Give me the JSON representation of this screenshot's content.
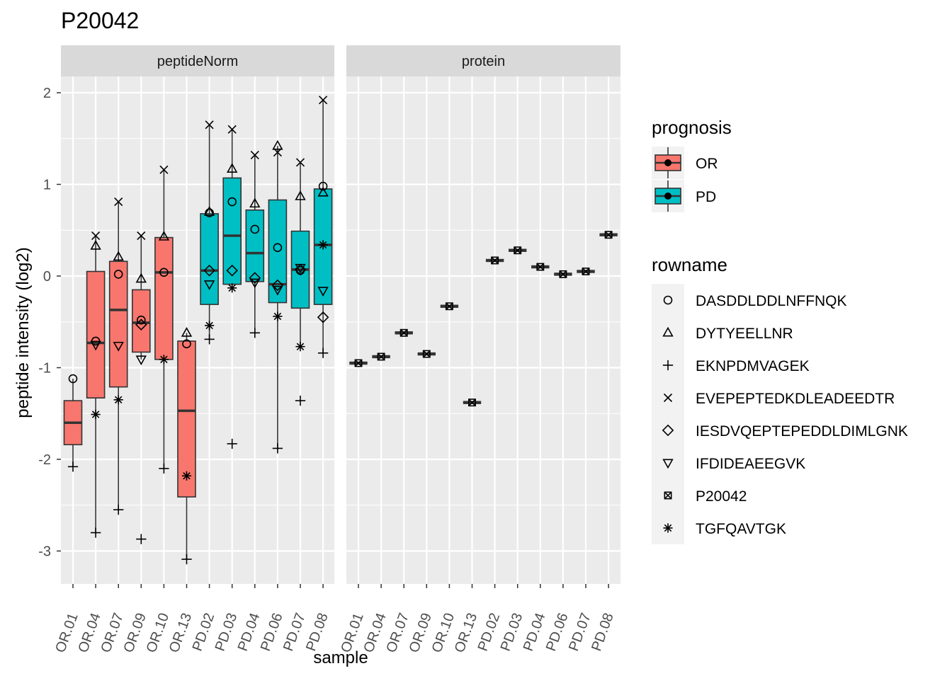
{
  "chart_data": {
    "type": "box",
    "title": "P20042",
    "xlabel": "sample",
    "ylabel": "peptide intensity (log2)",
    "ylim": [
      -3.35,
      2.2
    ],
    "yticks": [
      -3,
      -2,
      -1,
      0,
      1,
      2
    ],
    "ytick_labels": [
      "-3",
      "-2",
      "-1",
      "0",
      "1",
      "2"
    ],
    "categories": [
      "OR.01",
      "OR.04",
      "OR.07",
      "OR.09",
      "OR.10",
      "OR.13",
      "PD.02",
      "PD.03",
      "PD.04",
      "PD.06",
      "PD.07",
      "PD.08"
    ],
    "grid": true,
    "facets": [
      {
        "label": "peptideNorm",
        "boxes": [
          {
            "sample": "OR.01",
            "group": "OR",
            "q1": -1.84,
            "median": -1.6,
            "q3": -1.36,
            "lower": -2.08,
            "upper": -1.12
          },
          {
            "sample": "OR.04",
            "group": "OR",
            "q1": -1.33,
            "median": -0.73,
            "q3": 0.05,
            "lower": -2.8,
            "upper": 0.44
          },
          {
            "sample": "OR.07",
            "group": "OR",
            "q1": -1.21,
            "median": -0.37,
            "q3": 0.16,
            "lower": -2.55,
            "upper": 0.81
          },
          {
            "sample": "OR.09",
            "group": "OR",
            "q1": -0.83,
            "median": -0.51,
            "q3": -0.15,
            "lower": -0.91,
            "upper": 0.44
          },
          {
            "sample": "OR.10",
            "group": "OR",
            "q1": -0.91,
            "median": 0.04,
            "q3": 0.42,
            "lower": -2.1,
            "upper": 1.16
          },
          {
            "sample": "OR.13",
            "group": "OR",
            "q1": -2.41,
            "median": -1.47,
            "q3": -0.71,
            "lower": -3.09,
            "upper": -0.62
          },
          {
            "sample": "PD.02",
            "group": "PD",
            "q1": -0.31,
            "median": 0.06,
            "q3": 0.68,
            "lower": -0.69,
            "upper": 1.65
          },
          {
            "sample": "PD.03",
            "group": "PD",
            "q1": -0.09,
            "median": 0.44,
            "q3": 1.07,
            "lower": -0.13,
            "upper": 1.6
          },
          {
            "sample": "PD.04",
            "group": "PD",
            "q1": -0.06,
            "median": 0.25,
            "q3": 0.72,
            "lower": -0.62,
            "upper": 1.32
          },
          {
            "sample": "PD.06",
            "group": "PD",
            "q1": -0.29,
            "median": -0.09,
            "q3": 0.83,
            "lower": -1.88,
            "upper": 1.42
          },
          {
            "sample": "PD.07",
            "group": "PD",
            "q1": -0.35,
            "median": 0.07,
            "q3": 0.49,
            "lower": -0.77,
            "upper": 1.24
          },
          {
            "sample": "PD.08",
            "group": "PD",
            "q1": -0.31,
            "median": 0.34,
            "q3": 0.95,
            "lower": -0.84,
            "upper": 1.92
          }
        ],
        "points": [
          {
            "sample": "OR.01",
            "peptide": "DASDDLDDLNFFNQK",
            "y": -1.12
          },
          {
            "sample": "OR.01",
            "peptide": "EKNPDMVAGEK",
            "y": -2.08
          },
          {
            "sample": "OR.04",
            "peptide": "DASDDLDDLNFFNQK",
            "y": -0.71
          },
          {
            "sample": "OR.04",
            "peptide": "DYTYEELLNR",
            "y": 0.33
          },
          {
            "sample": "OR.04",
            "peptide": "EKNPDMVAGEK",
            "y": -2.8
          },
          {
            "sample": "OR.04",
            "peptide": "EVEPEPTEDKDLEADEEDTR",
            "y": 0.44
          },
          {
            "sample": "OR.04",
            "peptide": "IFDIDEAEEGVK",
            "y": -0.75
          },
          {
            "sample": "OR.04",
            "peptide": "TGFQAVTGK",
            "y": -1.51
          },
          {
            "sample": "OR.07",
            "peptide": "DASDDLDDLNFFNQK",
            "y": 0.02
          },
          {
            "sample": "OR.07",
            "peptide": "DYTYEELLNR",
            "y": 0.21
          },
          {
            "sample": "OR.07",
            "peptide": "EKNPDMVAGEK",
            "y": -2.55
          },
          {
            "sample": "OR.07",
            "peptide": "EVEPEPTEDKDLEADEEDTR",
            "y": 0.81
          },
          {
            "sample": "OR.07",
            "peptide": "IFDIDEAEEGVK",
            "y": -0.76
          },
          {
            "sample": "OR.07",
            "peptide": "TGFQAVTGK",
            "y": -1.35
          },
          {
            "sample": "OR.09",
            "peptide": "DASDDLDDLNFFNQK",
            "y": -0.48
          },
          {
            "sample": "OR.09",
            "peptide": "DYTYEELLNR",
            "y": -0.03
          },
          {
            "sample": "OR.09",
            "peptide": "EKNPDMVAGEK",
            "y": -2.87
          },
          {
            "sample": "OR.09",
            "peptide": "EVEPEPTEDKDLEADEEDTR",
            "y": 0.44
          },
          {
            "sample": "OR.09",
            "peptide": "IESDVQEPTEPEDDLDIMLGNK",
            "y": -0.53
          },
          {
            "sample": "OR.09",
            "peptide": "IFDIDEAEEGVK",
            "y": -0.91
          },
          {
            "sample": "OR.10",
            "peptide": "DASDDLDDLNFFNQK",
            "y": 0.04
          },
          {
            "sample": "OR.10",
            "peptide": "DYTYEELLNR",
            "y": 0.43
          },
          {
            "sample": "OR.10",
            "peptide": "EKNPDMVAGEK",
            "y": -2.1
          },
          {
            "sample": "OR.10",
            "peptide": "EVEPEPTEDKDLEADEEDTR",
            "y": 1.16
          },
          {
            "sample": "OR.10",
            "peptide": "TGFQAVTGK",
            "y": -0.91
          },
          {
            "sample": "OR.13",
            "peptide": "DASDDLDDLNFFNQK",
            "y": -0.74
          },
          {
            "sample": "OR.13",
            "peptide": "DYTYEELLNR",
            "y": -0.62
          },
          {
            "sample": "OR.13",
            "peptide": "EKNPDMVAGEK",
            "y": -3.09
          },
          {
            "sample": "OR.13",
            "peptide": "TGFQAVTGK",
            "y": -2.18
          },
          {
            "sample": "PD.02",
            "peptide": "DASDDLDDLNFFNQK",
            "y": 0.69
          },
          {
            "sample": "PD.02",
            "peptide": "DYTYEELLNR",
            "y": 0.7
          },
          {
            "sample": "PD.02",
            "peptide": "EKNPDMVAGEK",
            "y": -0.69
          },
          {
            "sample": "PD.02",
            "peptide": "EVEPEPTEDKDLEADEEDTR",
            "y": 1.65
          },
          {
            "sample": "PD.02",
            "peptide": "IESDVQEPTEPEDDLDIMLGNK",
            "y": 0.06
          },
          {
            "sample": "PD.02",
            "peptide": "IFDIDEAEEGVK",
            "y": -0.09
          },
          {
            "sample": "PD.02",
            "peptide": "TGFQAVTGK",
            "y": -0.54
          },
          {
            "sample": "PD.03",
            "peptide": "DASDDLDDLNFFNQK",
            "y": 0.81
          },
          {
            "sample": "PD.03",
            "peptide": "DYTYEELLNR",
            "y": 1.17
          },
          {
            "sample": "PD.03",
            "peptide": "EKNPDMVAGEK",
            "y": -1.83
          },
          {
            "sample": "PD.03",
            "peptide": "EVEPEPTEDKDLEADEEDTR",
            "y": 1.6
          },
          {
            "sample": "PD.03",
            "peptide": "IESDVQEPTEPEDDLDIMLGNK",
            "y": 0.06
          },
          {
            "sample": "PD.03",
            "peptide": "TGFQAVTGK",
            "y": -0.13
          },
          {
            "sample": "PD.04",
            "peptide": "DASDDLDDLNFFNQK",
            "y": 0.51
          },
          {
            "sample": "PD.04",
            "peptide": "DYTYEELLNR",
            "y": 0.79
          },
          {
            "sample": "PD.04",
            "peptide": "EKNPDMVAGEK",
            "y": -0.62
          },
          {
            "sample": "PD.04",
            "peptide": "EVEPEPTEDKDLEADEEDTR",
            "y": 1.32
          },
          {
            "sample": "PD.04",
            "peptide": "IESDVQEPTEPEDDLDIMLGNK",
            "y": -0.02
          },
          {
            "sample": "PD.04",
            "peptide": "IFDIDEAEEGVK",
            "y": -0.07
          },
          {
            "sample": "PD.06",
            "peptide": "DASDDLDDLNFFNQK",
            "y": 0.31
          },
          {
            "sample": "PD.06",
            "peptide": "DYTYEELLNR",
            "y": 1.42
          },
          {
            "sample": "PD.06",
            "peptide": "EKNPDMVAGEK",
            "y": -1.88
          },
          {
            "sample": "PD.06",
            "peptide": "EVEPEPTEDKDLEADEEDTR",
            "y": 1.35
          },
          {
            "sample": "PD.06",
            "peptide": "IESDVQEPTEPEDDLDIMLGNK",
            "y": -0.1
          },
          {
            "sample": "PD.06",
            "peptide": "IFDIDEAEEGVK",
            "y": -0.15
          },
          {
            "sample": "PD.06",
            "peptide": "TGFQAVTGK",
            "y": -0.44
          },
          {
            "sample": "PD.07",
            "peptide": "DASDDLDDLNFFNQK",
            "y": 0.06
          },
          {
            "sample": "PD.07",
            "peptide": "DYTYEELLNR",
            "y": 0.87
          },
          {
            "sample": "PD.07",
            "peptide": "EKNPDMVAGEK",
            "y": -1.36
          },
          {
            "sample": "PD.07",
            "peptide": "EVEPEPTEDKDLEADEEDTR",
            "y": 1.24
          },
          {
            "sample": "PD.07",
            "peptide": "IESDVQEPTEPEDDLDIMLGNK",
            "y": 0.07
          },
          {
            "sample": "PD.07",
            "peptide": "IFDIDEAEEGVK",
            "y": 0.09
          },
          {
            "sample": "PD.07",
            "peptide": "TGFQAVTGK",
            "y": -0.77
          },
          {
            "sample": "PD.08",
            "peptide": "DASDDLDDLNFFNQK",
            "y": 0.98
          },
          {
            "sample": "PD.08",
            "peptide": "DYTYEELLNR",
            "y": 0.91
          },
          {
            "sample": "PD.08",
            "peptide": "EKNPDMVAGEK",
            "y": -0.84
          },
          {
            "sample": "PD.08",
            "peptide": "EVEPEPTEDKDLEADEEDTR",
            "y": 1.92
          },
          {
            "sample": "PD.08",
            "peptide": "IESDVQEPTEPEDDLDIMLGNK",
            "y": -0.45
          },
          {
            "sample": "PD.08",
            "peptide": "IFDIDEAEEGVK",
            "y": -0.16
          },
          {
            "sample": "PD.08",
            "peptide": "TGFQAVTGK",
            "y": 0.34
          }
        ]
      },
      {
        "label": "protein",
        "points": [
          {
            "sample": "OR.01",
            "peptide": "P20042",
            "y": -0.95,
            "group": "OR"
          },
          {
            "sample": "OR.04",
            "peptide": "P20042",
            "y": -0.88,
            "group": "OR"
          },
          {
            "sample": "OR.07",
            "peptide": "P20042",
            "y": -0.62,
            "group": "OR"
          },
          {
            "sample": "OR.09",
            "peptide": "P20042",
            "y": -0.85,
            "group": "OR"
          },
          {
            "sample": "OR.10",
            "peptide": "P20042",
            "y": -0.33,
            "group": "OR"
          },
          {
            "sample": "OR.13",
            "peptide": "P20042",
            "y": -1.38,
            "group": "OR"
          },
          {
            "sample": "PD.02",
            "peptide": "P20042",
            "y": 0.17,
            "group": "PD"
          },
          {
            "sample": "PD.03",
            "peptide": "P20042",
            "y": 0.28,
            "group": "PD"
          },
          {
            "sample": "PD.04",
            "peptide": "P20042",
            "y": 0.1,
            "group": "PD"
          },
          {
            "sample": "PD.06",
            "peptide": "P20042",
            "y": 0.02,
            "group": "PD"
          },
          {
            "sample": "PD.07",
            "peptide": "P20042",
            "y": 0.05,
            "group": "PD"
          },
          {
            "sample": "PD.08",
            "peptide": "P20042",
            "y": 0.45,
            "group": "PD"
          }
        ]
      }
    ],
    "legend": {
      "placement": "right",
      "fill": {
        "title": "prognosis",
        "items": [
          {
            "label": "OR",
            "color": "#F8766D"
          },
          {
            "label": "PD",
            "color": "#00BFC4"
          }
        ]
      },
      "shape": {
        "title": "rowname",
        "items": [
          {
            "label": "DASDDLDDLNFFNQK",
            "shape": "circle-icon"
          },
          {
            "label": "DYTYEELLNR",
            "shape": "triangle-up-icon"
          },
          {
            "label": "EKNPDMVAGEK",
            "shape": "plus-icon"
          },
          {
            "label": "EVEPEPTEDKDLEADEEDTR",
            "shape": "cross-icon"
          },
          {
            "label": "IESDVQEPTEPEDDLDIMLGNK",
            "shape": "diamond-icon"
          },
          {
            "label": "IFDIDEAEEGVK",
            "shape": "triangle-down-icon"
          },
          {
            "label": "P20042",
            "shape": "square-cross-icon"
          },
          {
            "label": "TGFQAVTGK",
            "shape": "asterisk-icon"
          }
        ]
      }
    },
    "colors": {
      "OR": "#F8766D",
      "PD": "#00BFC4",
      "panel_background": "#EBEBEB",
      "strip_background": "#D9D9D9",
      "grid": "#FFFFFF"
    }
  }
}
